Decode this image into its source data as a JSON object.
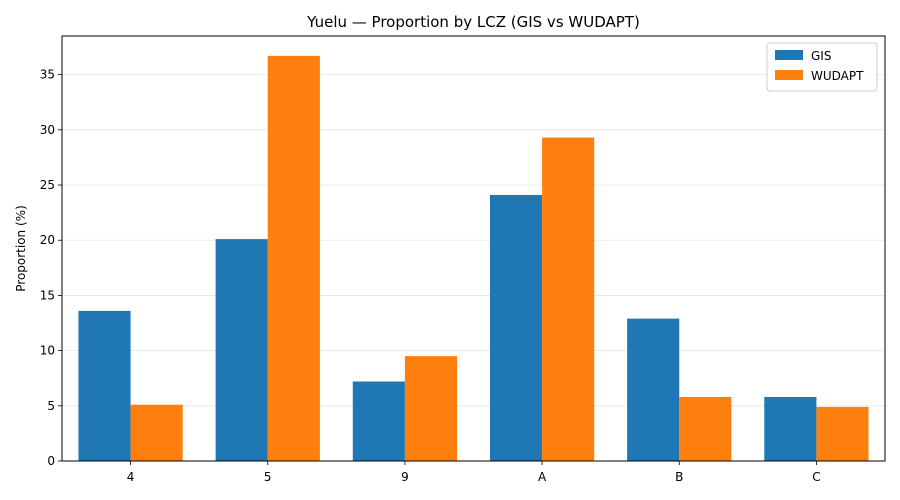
{
  "chart_data": {
    "type": "bar",
    "title": "Yuelu — Proportion by LCZ (GIS vs WUDAPT)",
    "xlabel": "",
    "ylabel": "Proportion (%)",
    "categories": [
      "4",
      "5",
      "9",
      "A",
      "B",
      "C"
    ],
    "series": [
      {
        "name": "GIS",
        "color": "#1f77b4",
        "values": [
          13.6,
          20.1,
          7.2,
          24.1,
          12.9,
          5.8
        ]
      },
      {
        "name": "WUDAPT",
        "color": "#ff7f0e",
        "values": [
          5.1,
          36.7,
          9.5,
          29.3,
          5.8,
          4.9
        ]
      }
    ],
    "ylim": [
      0,
      38.5
    ],
    "yticks": [
      0,
      5,
      10,
      15,
      20,
      25,
      30,
      35
    ],
    "grid": "y",
    "legend": "top-right"
  }
}
